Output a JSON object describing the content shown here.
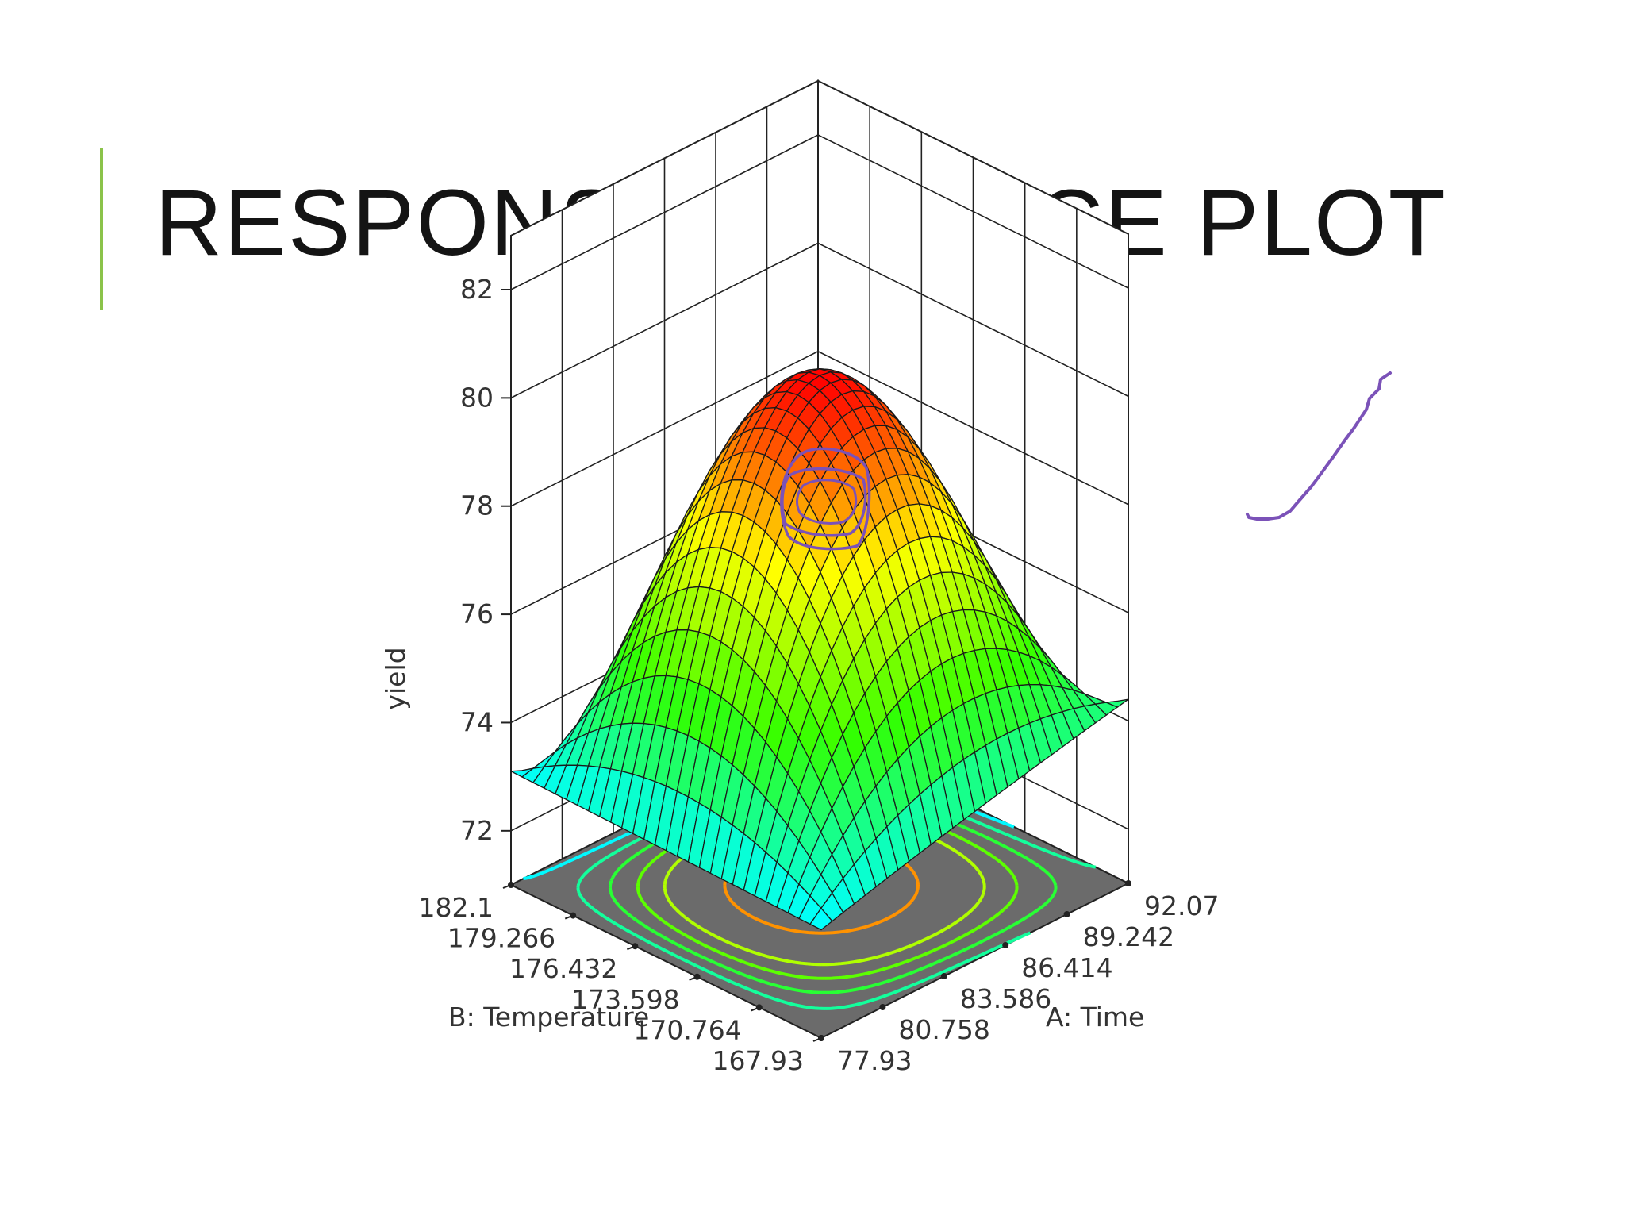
{
  "slide": {
    "title": "RESPONSE SURFACE PLOT",
    "accent_color": "#8bc34a"
  },
  "chart_data": {
    "type": "surface3d",
    "title": "",
    "zlabel": "yield",
    "xlabel": "A: Time",
    "ylabel": "B: Temperature",
    "x_ticks": [
      "77.93",
      "80.758",
      "83.586",
      "86.414",
      "89.242",
      "92.07"
    ],
    "y_ticks": [
      "167.93",
      "170.764",
      "173.598",
      "176.432",
      "179.266",
      "182.1"
    ],
    "z_ticks": [
      "72",
      "74",
      "76",
      "78",
      "80",
      "82"
    ],
    "xlim": [
      77.93,
      92.07
    ],
    "ylim": [
      167.93,
      182.1
    ],
    "zlim": [
      71,
      82
    ],
    "peak": {
      "time": 85.0,
      "temperature": 175.0,
      "yield": 80.4
    },
    "corner_values": [
      {
        "time": 77.93,
        "temperature": 167.93,
        "yield": 73.0
      },
      {
        "time": 92.07,
        "temperature": 167.93,
        "yield": 74.4
      },
      {
        "time": 77.93,
        "temperature": 182.1,
        "yield": 73.1
      },
      {
        "time": 92.07,
        "temperature": 182.1,
        "yield": 70.6
      }
    ],
    "contour_levels": [
      73,
      74,
      75,
      76,
      77,
      79
    ],
    "grid": true,
    "colormap": [
      "#3f00ff",
      "#00ffff",
      "#32ff00",
      "#ffff00",
      "#ff0000"
    ],
    "floor_color": "#6b6b6b"
  },
  "annotations": {
    "pen_color": "#7b52b8"
  }
}
